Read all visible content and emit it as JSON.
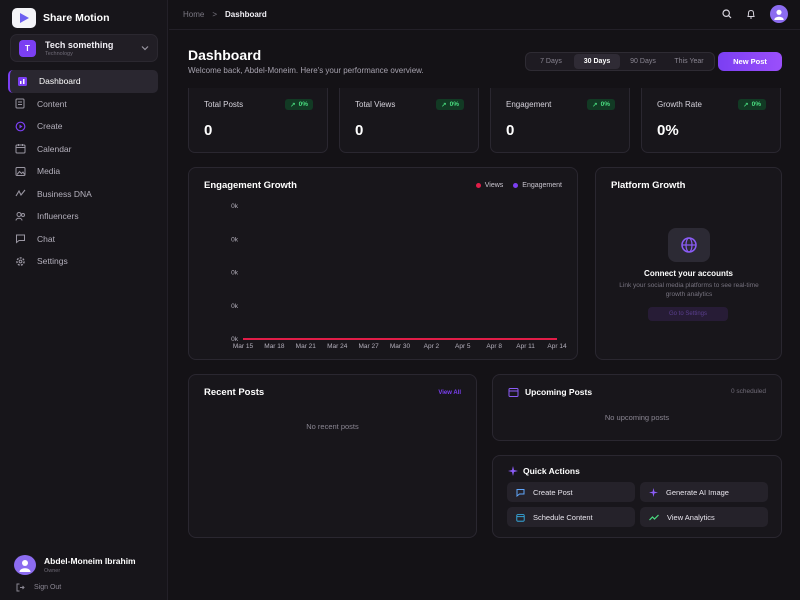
{
  "brand": {
    "name": "Share Motion"
  },
  "workspace": {
    "initial": "T",
    "name": "Tech something",
    "category": "Technology"
  },
  "nav": [
    {
      "label": "Dashboard",
      "icon": "dashboard-icon",
      "active": true
    },
    {
      "label": "Content",
      "icon": "document-icon"
    },
    {
      "label": "Create",
      "icon": "create-icon"
    },
    {
      "label": "Calendar",
      "icon": "calendar-icon"
    },
    {
      "label": "Media",
      "icon": "image-icon"
    },
    {
      "label": "Business DNA",
      "icon": "dna-icon"
    },
    {
      "label": "Influencers",
      "icon": "users-icon"
    },
    {
      "label": "Chat",
      "icon": "chat-icon"
    },
    {
      "label": "Settings",
      "icon": "gear-icon"
    }
  ],
  "user": {
    "name": "Abdel-Moneim Ibrahim",
    "role": "Owner"
  },
  "signout_label": "Sign Out",
  "breadcrumb": {
    "home": "Home",
    "sep": ">",
    "current": "Dashboard"
  },
  "header": {
    "title": "Dashboard",
    "subtitle": "Welcome back, Abdel-Moneim. Here's your performance overview.",
    "ranges": [
      "7 Days",
      "30 Days",
      "90 Days",
      "This Year"
    ],
    "active_range": "30 Days",
    "new_post_label": "New Post"
  },
  "stats": [
    {
      "label": "Total Posts",
      "badge": "0%",
      "value": "0"
    },
    {
      "label": "Total Views",
      "badge": "0%",
      "value": "0"
    },
    {
      "label": "Engagement",
      "badge": "0%",
      "value": "0"
    },
    {
      "label": "Growth Rate",
      "badge": "0%",
      "value": "0%"
    }
  ],
  "engagement_card": {
    "title": "Engagement Growth"
  },
  "chart_data": {
    "type": "line",
    "title": "Engagement Growth",
    "categories": [
      "Mar 15",
      "Mar 18",
      "Mar 21",
      "Mar 24",
      "Mar 27",
      "Mar 30",
      "Apr 2",
      "Apr 5",
      "Apr 8",
      "Apr 11",
      "Apr 14"
    ],
    "y_ticks": [
      "0k",
      "0k",
      "0k",
      "0k",
      "0k"
    ],
    "series": [
      {
        "name": "Views",
        "color": "#e11d48",
        "values": [
          0,
          0,
          0,
          0,
          0,
          0,
          0,
          0,
          0,
          0,
          0
        ]
      },
      {
        "name": "Engagement",
        "color": "#7b3ff2",
        "values": [
          0,
          0,
          0,
          0,
          0,
          0,
          0,
          0,
          0,
          0,
          0
        ]
      }
    ],
    "ylim": [
      0,
      4
    ],
    "legend": "top-right",
    "grid": false
  },
  "platform": {
    "title": "Platform Growth",
    "heading": "Connect your accounts",
    "text": "Link your social media platforms to see real-time growth analytics",
    "button": "Go to Settings"
  },
  "recent": {
    "title": "Recent Posts",
    "link": "View All",
    "empty": "No recent posts"
  },
  "upcoming": {
    "title": "Upcoming Posts",
    "count": "0 scheduled",
    "empty": "No upcoming posts"
  },
  "quick": {
    "title": "Quick Actions",
    "actions": [
      {
        "label": "Create Post",
        "icon": "chat-bubble-icon"
      },
      {
        "label": "Generate AI Image",
        "icon": "sparkle-icon"
      },
      {
        "label": "Schedule Content",
        "icon": "calendar-icon"
      },
      {
        "label": "View Analytics",
        "icon": "trend-icon"
      }
    ]
  },
  "colors": {
    "accent": "#7b3ff2",
    "positive": "#4ade80",
    "views": "#e11d48"
  }
}
